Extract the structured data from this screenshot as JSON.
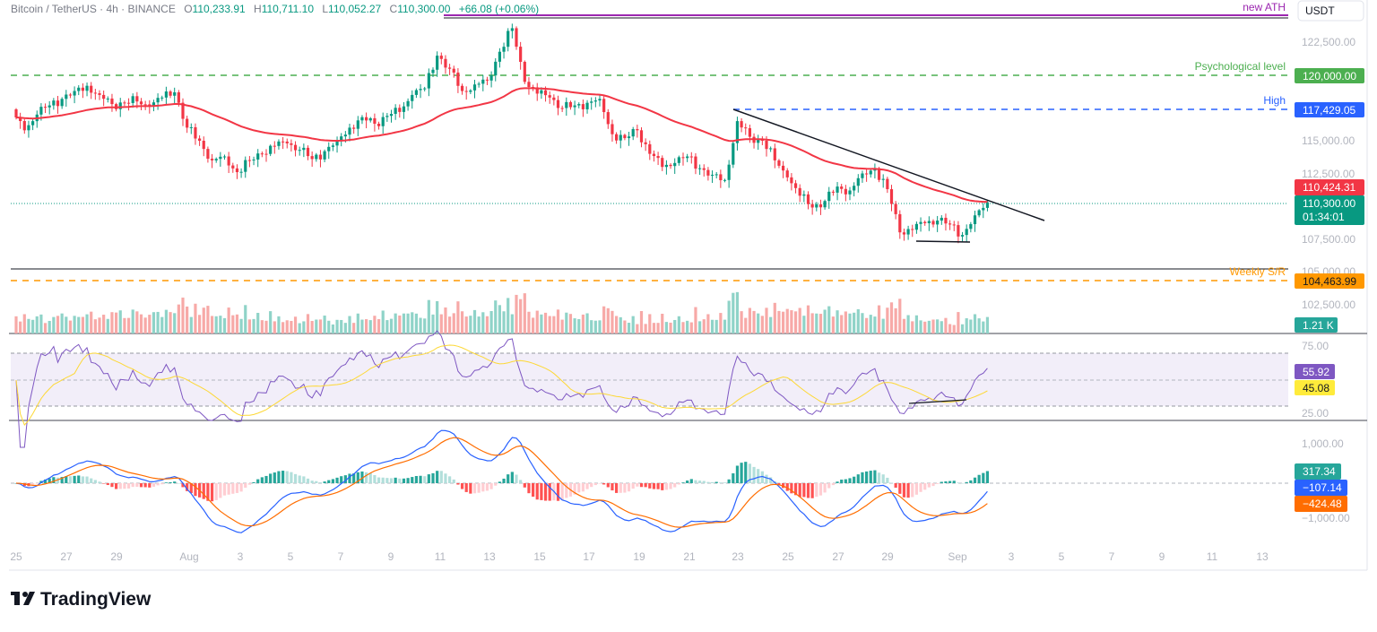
{
  "header": {
    "symbol": "Bitcoin / TetherUS · 4h · BINANCE",
    "open_label": "O",
    "open": "110,233.91",
    "high_label": "H",
    "high": "110,711.10",
    "low_label": "L",
    "low": "110,052.27",
    "close_label": "C",
    "close": "110,300.00",
    "change": "+66.08 (+0.06%)"
  },
  "axis": {
    "currency": "USDT",
    "price_ticks": [
      "122,500.00",
      "115,000.00",
      "112,500.00",
      "107,500.00",
      "105,000.00",
      "102,500.00"
    ],
    "rsi_ticks": [
      "75.00",
      "25.00"
    ],
    "macd_ticks": [
      "1,000.00",
      "−1,000.00"
    ],
    "time_ticks": [
      "25",
      "27",
      "29",
      "Aug",
      "3",
      "5",
      "7",
      "9",
      "11",
      "13",
      "15",
      "17",
      "19",
      "21",
      "23",
      "25",
      "27",
      "29",
      "Sep",
      "3",
      "5",
      "7",
      "9",
      "11",
      "13"
    ]
  },
  "annotations": {
    "ath": "new ATH",
    "psych": "Psychological level",
    "high": "High",
    "weekly": "Weekly S/R"
  },
  "tags": {
    "psych": "120,000.00",
    "high": "117,429.05",
    "ema": "110,424.31",
    "last": "110,300.00",
    "countdown": "01:34:01",
    "weekly": "104,463.99",
    "volume": "1.21 K",
    "rsi": "55.92",
    "rsi_ma": "45.08",
    "macd_hist": "317.34",
    "macd": "−107.14",
    "macd_signal": "−424.48"
  },
  "colors": {
    "up": "#089981",
    "down": "#f23645",
    "ema": "#f23645",
    "ath": "#9c27b0",
    "psych": "#4caf50",
    "high": "#2962ff",
    "weekly": "#ff9800",
    "rsi": "#7e57c2",
    "rsi_ma": "#fdd835",
    "macd": "#2962ff",
    "macd_signal": "#ff6d00",
    "hist_up": "#26a69a",
    "hist_down": "#ff5252"
  },
  "brand": "TradingView",
  "chart_data": {
    "type": "candlestick",
    "symbol": "BTCUSDT",
    "interval": "4h",
    "close_series_step": "12h",
    "close_series_start": "Jul 25",
    "closes": [
      117000,
      115800,
      117000,
      117700,
      118200,
      118800,
      119200,
      118500,
      117800,
      117900,
      118000,
      117600,
      118300,
      118700,
      116000,
      115000,
      113500,
      113800,
      112600,
      113500,
      114000,
      114600,
      114800,
      114300,
      113600,
      114200,
      115000,
      116000,
      116800,
      116300,
      116900,
      117200,
      118500,
      119000,
      121500,
      120500,
      118800,
      119300,
      119600,
      121800,
      123600,
      119500,
      118600,
      118300,
      117500,
      117700,
      117900,
      118200,
      115500,
      115200,
      115800,
      114000,
      113000,
      113300,
      113800,
      112900,
      112400,
      112000,
      116500,
      115300,
      115000,
      113500,
      112200,
      110800,
      109900,
      110400,
      111500,
      111200,
      112500,
      112900,
      111300,
      108000,
      108200,
      108700,
      108900,
      108600,
      107800,
      109300,
      110300
    ],
    "ylim": [
      101500,
      124500
    ],
    "levels": [
      {
        "name": "new ATH",
        "price": 124450
      },
      {
        "name": "Psychological level",
        "price": 120000
      },
      {
        "name": "High",
        "price": 117429.05
      },
      {
        "name": "Weekly S/R",
        "price": 104463.99
      }
    ],
    "trendline": {
      "from": {
        "date": "Aug 22",
        "price": 117429
      },
      "to": {
        "date": "Sep 4",
        "price": 108900
      }
    },
    "support_line": {
      "from": "Aug 30",
      "to": "Sep 1",
      "price": 107300
    },
    "indicators": {
      "ema_last": 110424.31,
      "volume_last": "1.21K",
      "rsi_last": 55.92,
      "rsi_ma_last": 45.08,
      "rsi_bands": [
        30,
        50,
        70
      ],
      "macd_last": -107.14,
      "macd_signal_last": -424.48,
      "macd_hist_last": 317.34
    }
  }
}
